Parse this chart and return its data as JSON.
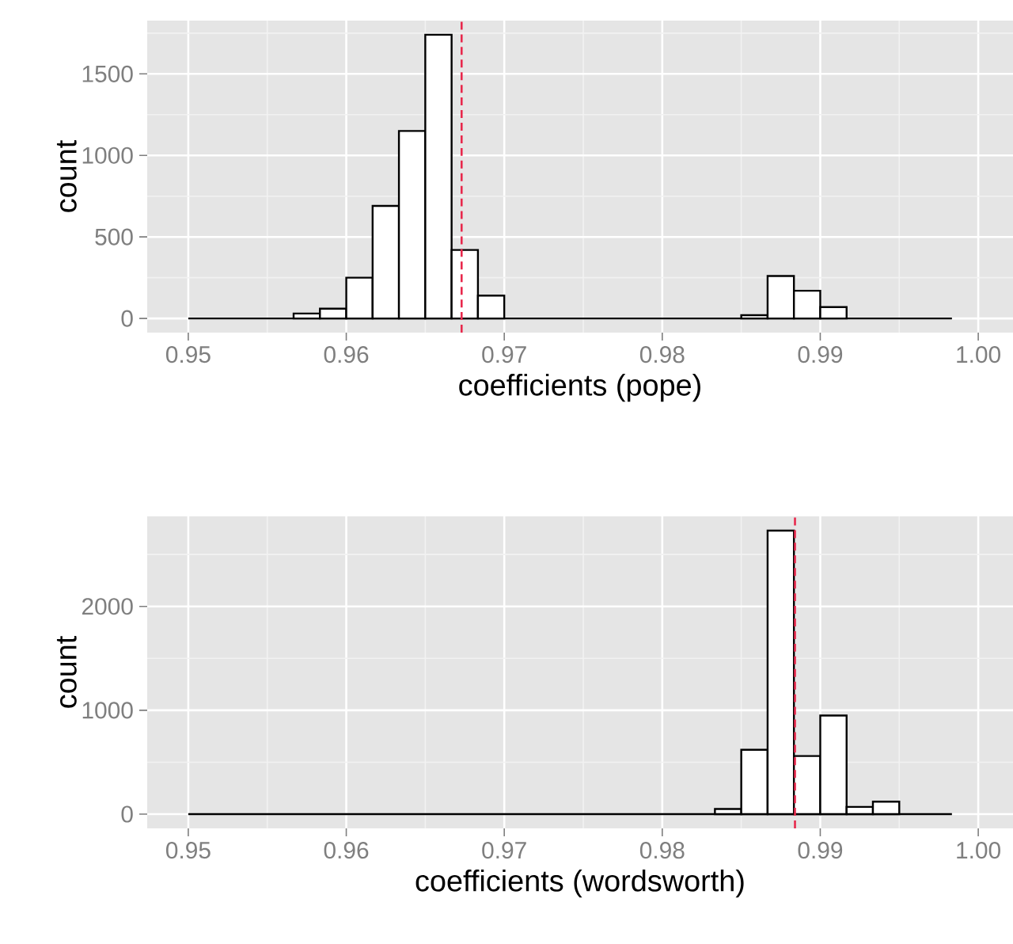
{
  "chart_data": [
    {
      "type": "histogram",
      "xlabel": "coefficients (pope)",
      "ylabel": "count",
      "bins": [
        0.95,
        0.951667,
        0.953333,
        0.955,
        0.956667,
        0.958333,
        0.96,
        0.961667,
        0.963333,
        0.965,
        0.966667,
        0.968333,
        0.97,
        0.971667,
        0.973333,
        0.975,
        0.976667,
        0.978333,
        0.98,
        0.981667,
        0.983333,
        0.985,
        0.986667,
        0.988333,
        0.99,
        0.991667,
        0.993333,
        0.995,
        0.996667,
        0.998333
      ],
      "values": [
        0,
        0,
        0,
        0,
        30,
        60,
        250,
        690,
        1150,
        1740,
        420,
        140,
        0,
        0,
        0,
        0,
        0,
        0,
        0,
        0,
        0,
        20,
        260,
        170,
        70,
        0,
        0,
        0,
        0
      ],
      "color": "#ffffff",
      "xlim": [
        0.9474,
        1.0022
      ],
      "ylim": [
        -87,
        1827
      ],
      "xticks": [
        0.95,
        0.96,
        0.97,
        0.98,
        0.99,
        {
          "value": 1.0,
          "label": "1.00"
        }
      ],
      "yticks": [
        0,
        500,
        1000,
        1500
      ],
      "grid": true,
      "ref_lines": [
        {
          "axis": "x",
          "value": 0.9673,
          "color": "#e8284c",
          "line_style": "dashed"
        }
      ]
    },
    {
      "type": "histogram",
      "xlabel": "coefficients (wordsworth)",
      "ylabel": "count",
      "bins": [
        0.95,
        0.951667,
        0.953333,
        0.955,
        0.956667,
        0.958333,
        0.96,
        0.961667,
        0.963333,
        0.965,
        0.966667,
        0.968333,
        0.97,
        0.971667,
        0.973333,
        0.975,
        0.976667,
        0.978333,
        0.98,
        0.981667,
        0.983333,
        0.985,
        0.986667,
        0.988333,
        0.99,
        0.991667,
        0.993333,
        0.995,
        0.996667,
        0.998333
      ],
      "values": [
        0,
        0,
        0,
        0,
        0,
        0,
        0,
        0,
        0,
        0,
        0,
        0,
        0,
        0,
        0,
        0,
        0,
        0,
        0,
        0,
        50,
        620,
        2730,
        560,
        950,
        70,
        120,
        0,
        0
      ],
      "color": "#ffffff",
      "xlim": [
        0.9474,
        1.0022
      ],
      "ylim": [
        -137,
        2867
      ],
      "xticks": [
        0.95,
        0.96,
        0.97,
        0.98,
        0.99,
        {
          "value": 1.0,
          "label": "1.00"
        }
      ],
      "yticks": [
        0,
        1000,
        2000
      ],
      "grid": true,
      "ref_lines": [
        {
          "axis": "x",
          "value": 0.9884,
          "color": "#e8284c",
          "line_style": "dashed"
        }
      ]
    }
  ]
}
